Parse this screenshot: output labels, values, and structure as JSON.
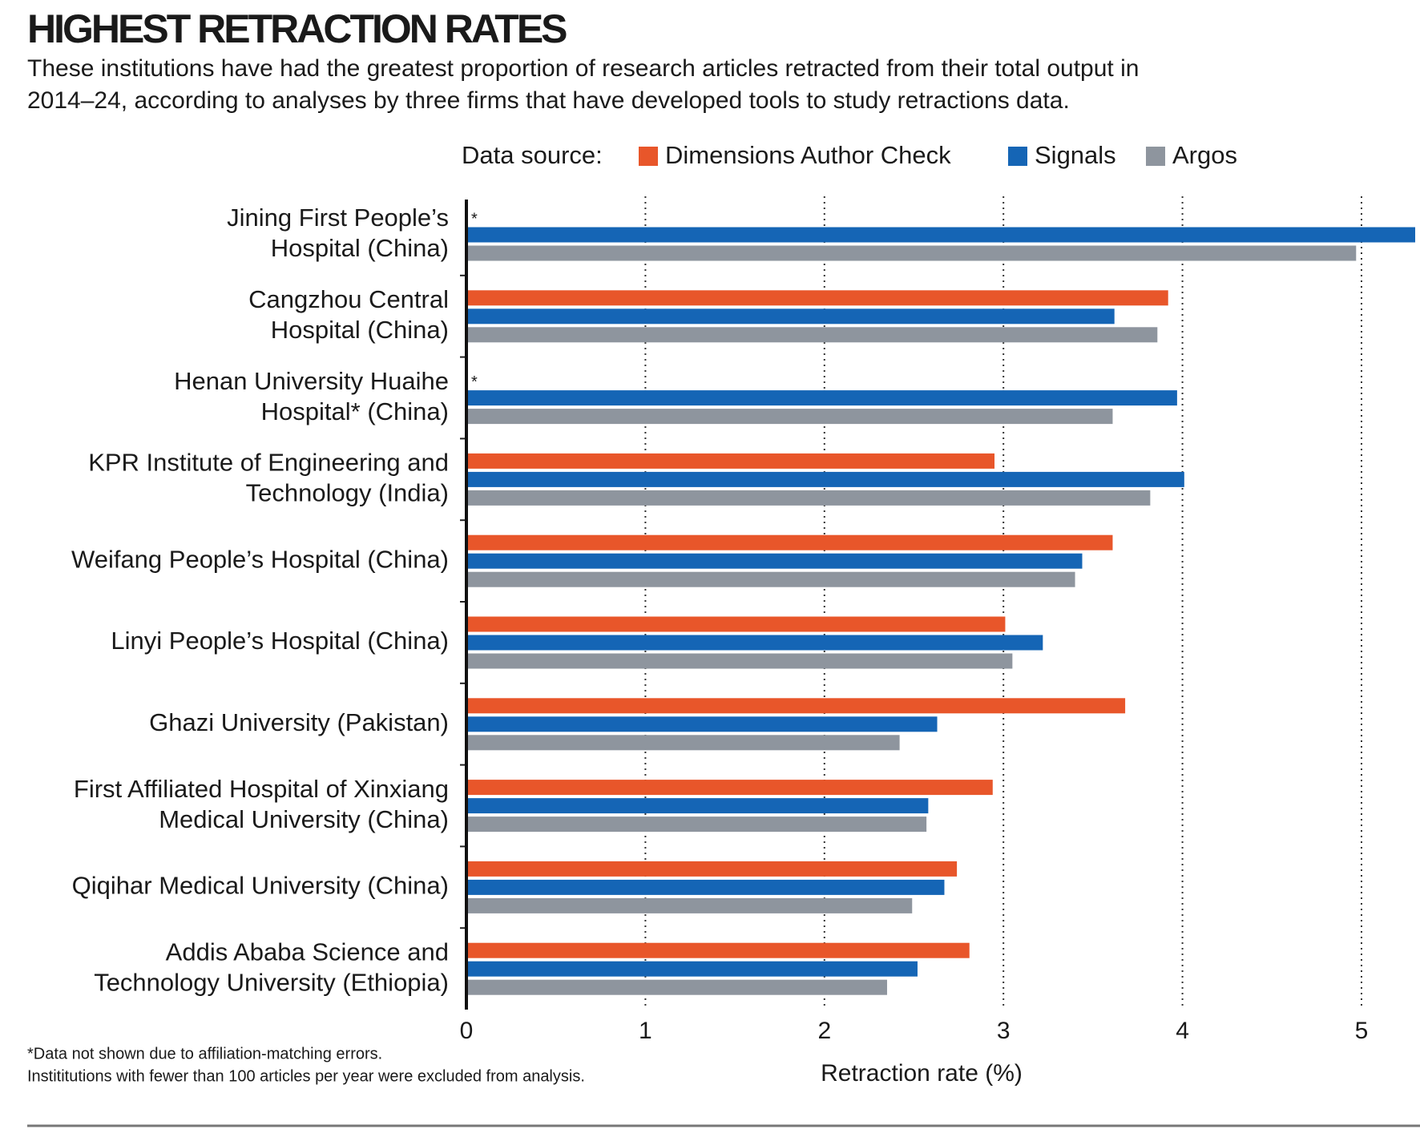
{
  "chart_data": {
    "type": "bar",
    "orientation": "horizontal",
    "title": "HIGHEST RETRACTION RATES",
    "subtitle": [
      "These institutions have had the greatest proportion of research articles retracted from their total output in",
      "2014–24, according to analyses by three firms that have developed tools to study retractions data."
    ],
    "legend_title": "Data source:",
    "categories": [
      [
        "Jining First People’s",
        "Hospital (China)"
      ],
      [
        "Cangzhou Central",
        "Hospital (China)"
      ],
      [
        "Henan University Huaihe",
        "Hospital* (China)"
      ],
      [
        "KPR Institute of Engineering and",
        "Technology (India)"
      ],
      [
        "Weifang People’s Hospital (China)"
      ],
      [
        "Linyi People’s Hospital (China)"
      ],
      [
        "Ghazi University (Pakistan)"
      ],
      [
        "First Affiliated Hospital of Xinxiang",
        "Medical University (China)"
      ],
      [
        "Qiqihar Medical University (China)"
      ],
      [
        "Addis Ababa Science and",
        "Technology University (Ethiopia)"
      ]
    ],
    "series": [
      {
        "name": "Dimensions Author Check",
        "color": "#e8562a",
        "values": [
          null,
          3.92,
          null,
          2.95,
          3.61,
          3.01,
          3.68,
          2.94,
          2.74,
          2.81
        ]
      },
      {
        "name": "Signals",
        "color": "#1565b5",
        "values": [
          5.3,
          3.62,
          3.97,
          4.01,
          3.44,
          3.22,
          2.63,
          2.58,
          2.67,
          2.52
        ]
      },
      {
        "name": "Argos",
        "color": "#8e959e",
        "values": [
          4.97,
          3.86,
          3.61,
          3.82,
          3.4,
          3.05,
          2.42,
          2.57,
          2.49,
          2.35
        ]
      }
    ],
    "null_marker": "*",
    "xlabel": "Retraction rate (%)",
    "xlim": [
      0,
      5.3
    ],
    "xticks": [
      0,
      1,
      2,
      3,
      4,
      5
    ],
    "grid": true,
    "footnote": [
      "*Data not shown due to affiliation-matching errors.",
      "Instititutions with fewer than 100 articles per year were excluded from analysis."
    ]
  }
}
